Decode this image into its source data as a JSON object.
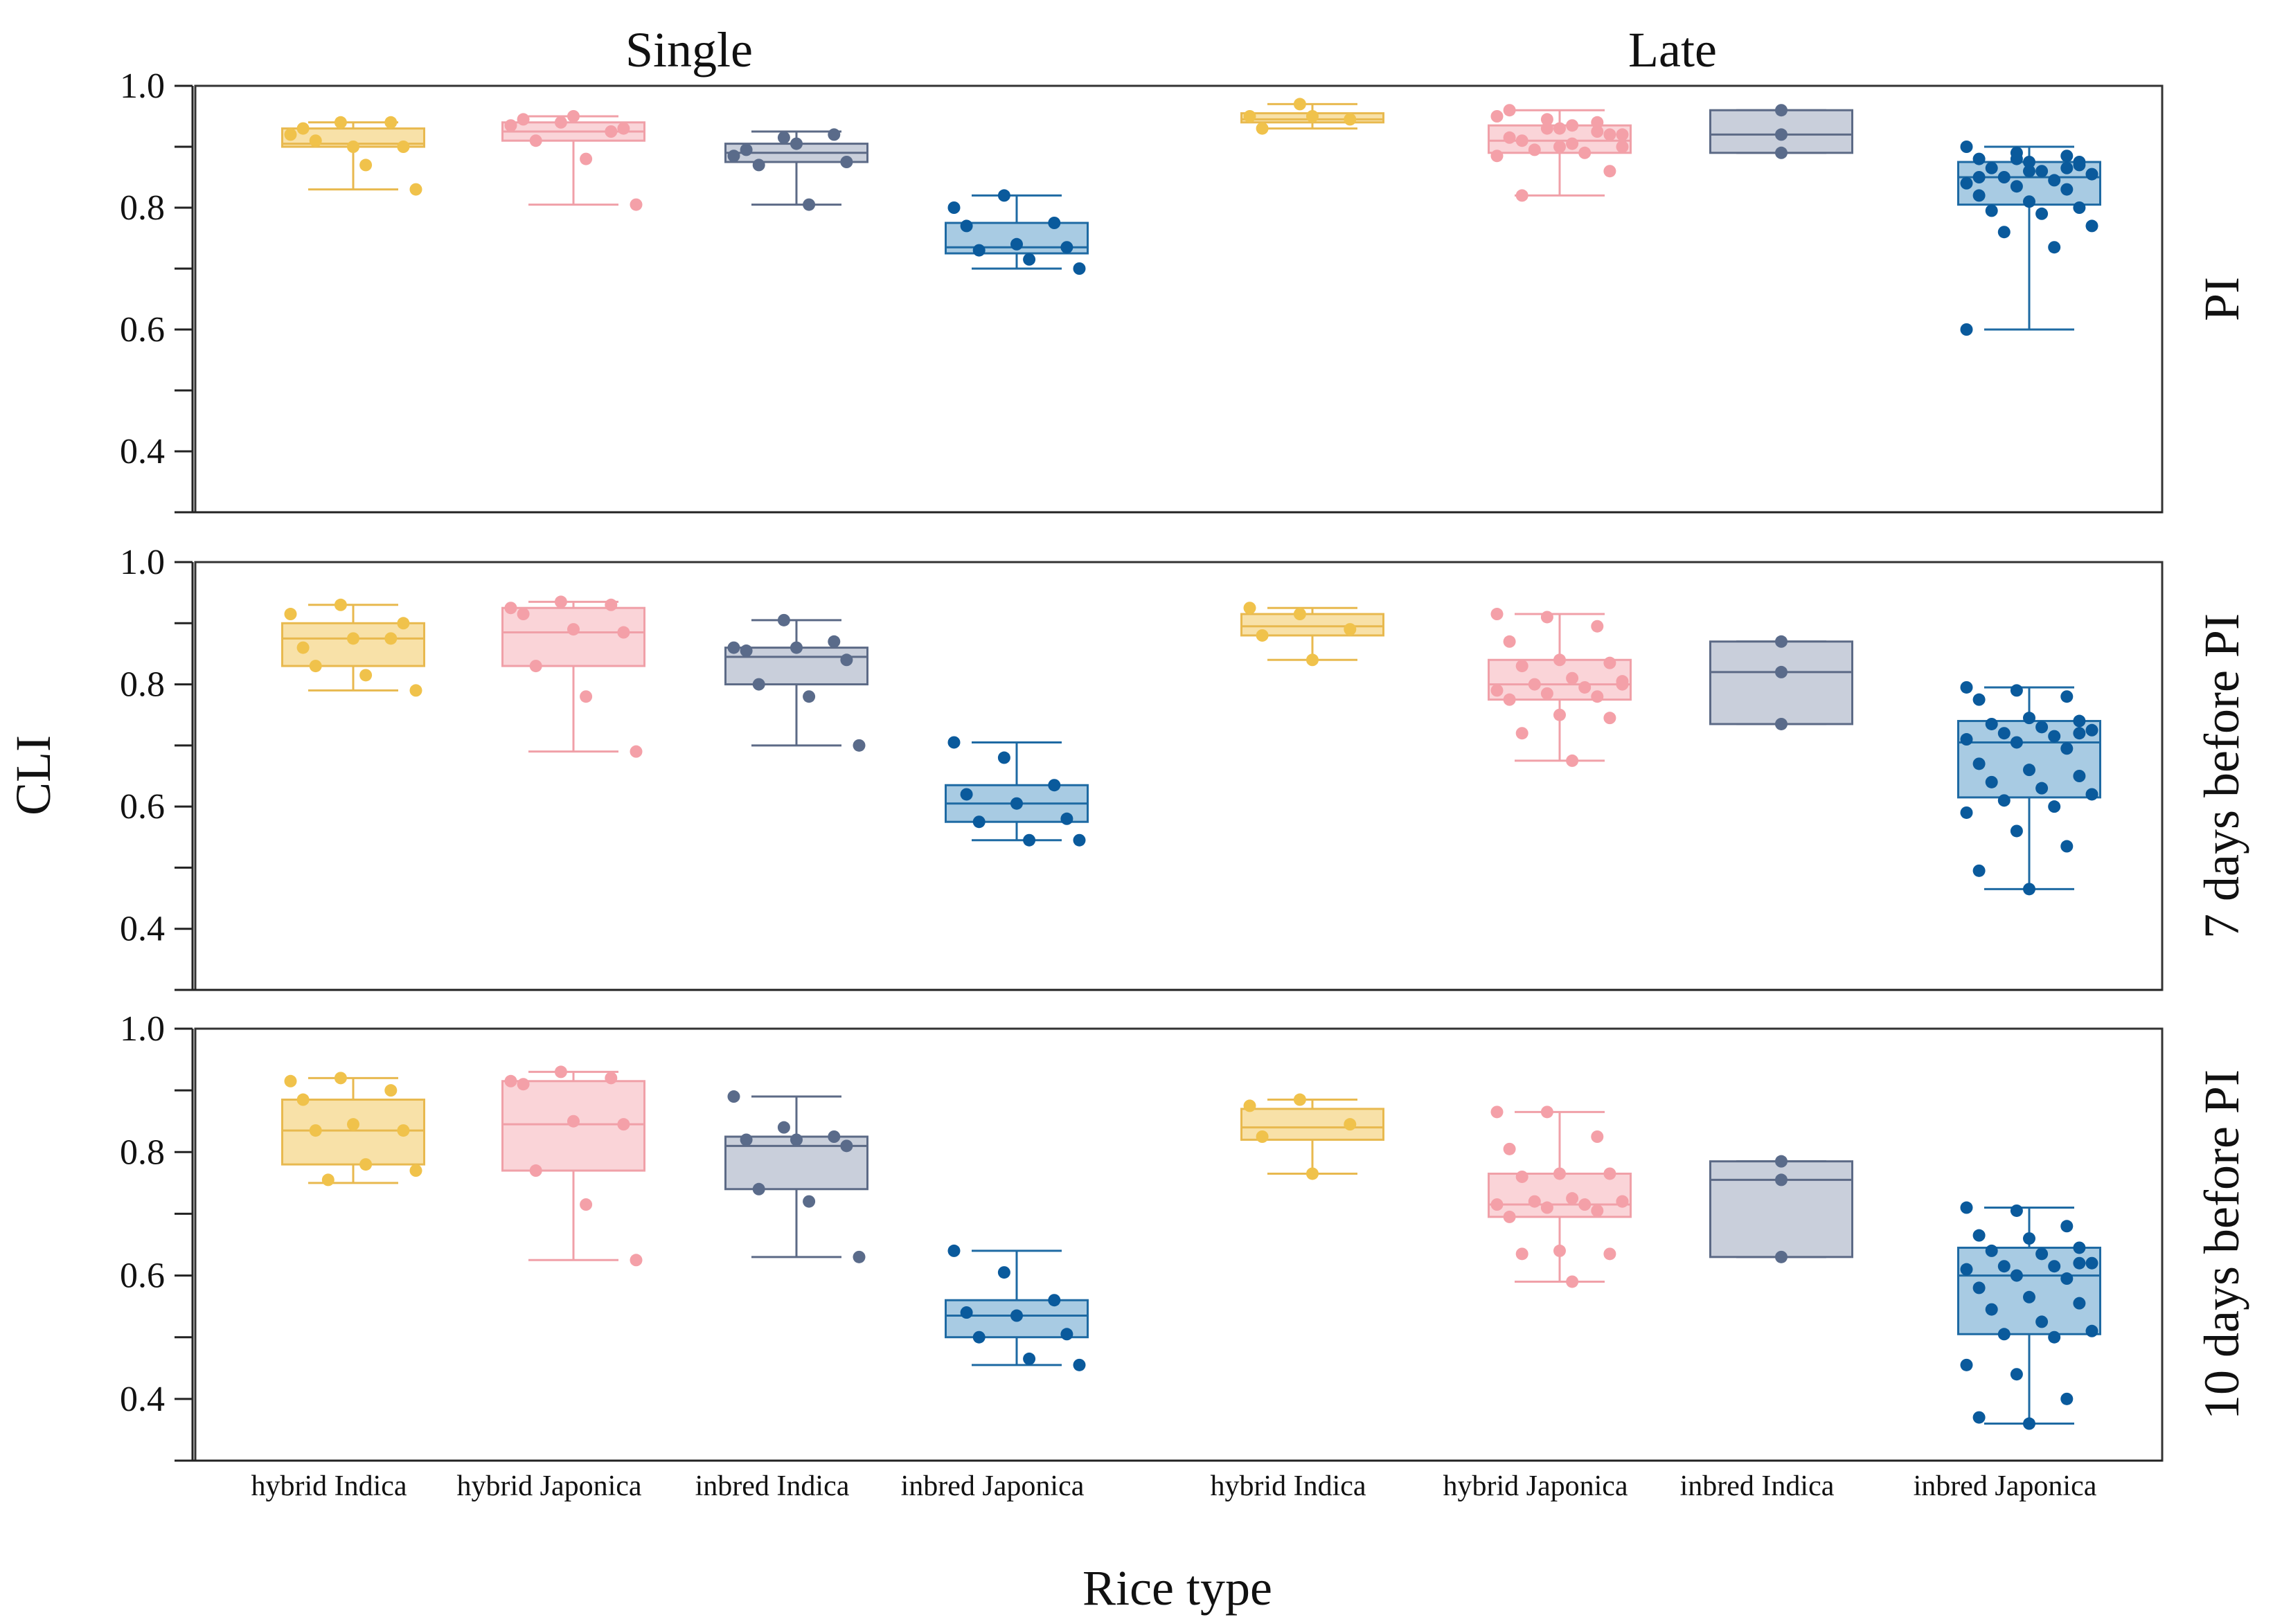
{
  "chart_data": {
    "type": "box",
    "xlabel": "Rice type",
    "ylabel": "CLI",
    "ylim": [
      0.3,
      1.0
    ],
    "yticks": [
      "0.4",
      "0.6",
      "0.8",
      "1.0"
    ],
    "columns": [
      "Single",
      "Late"
    ],
    "rows": [
      "PI",
      "7 days before PI",
      "10 days before PI"
    ],
    "categories": [
      "hybrid Indica",
      "hybrid Japonica",
      "inbred Indica",
      "inbred Japonica"
    ],
    "colors": {
      "hybrid Indica": {
        "fill": "#f8e1a8",
        "stroke": "#e8b94f",
        "point": "#f0c24b"
      },
      "hybrid Japonica": {
        "fill": "#fad4d8",
        "stroke": "#f0a0a8",
        "point": "#f4a0a8"
      },
      "inbred Indica": {
        "fill": "#c9cfdb",
        "stroke": "#5c6a86",
        "point": "#5a6b8a"
      },
      "inbred Japonica": {
        "fill": "#a8cbe3",
        "stroke": "#1e6aa3",
        "point": "#0a5a9c"
      }
    },
    "panels": [
      {
        "row": "PI",
        "column": "Single",
        "groups": [
          {
            "category": "hybrid Indica",
            "min": 0.83,
            "q1": 0.9,
            "median": 0.905,
            "q3": 0.93,
            "max": 0.94,
            "points": [
              0.92,
              0.94,
              0.94,
              0.93,
              0.9,
              0.9,
              0.91,
              0.87,
              0.83
            ]
          },
          {
            "category": "hybrid Japonica",
            "min": 0.805,
            "q1": 0.91,
            "median": 0.925,
            "q3": 0.94,
            "max": 0.95,
            "points": [
              0.935,
              0.94,
              0.925,
              0.945,
              0.95,
              0.93,
              0.91,
              0.88,
              0.805
            ]
          },
          {
            "category": "inbred Indica",
            "min": 0.805,
            "q1": 0.875,
            "median": 0.89,
            "q3": 0.905,
            "max": 0.925,
            "points": [
              0.885,
              0.915,
              0.92,
              0.895,
              0.905,
              0.875,
              0.87,
              0.805
            ]
          },
          {
            "category": "inbred Japonica",
            "min": 0.7,
            "q1": 0.725,
            "median": 0.735,
            "q3": 0.775,
            "max": 0.82,
            "points": [
              0.8,
              0.82,
              0.775,
              0.77,
              0.74,
              0.735,
              0.73,
              0.715,
              0.7
            ]
          }
        ]
      },
      {
        "row": "PI",
        "column": "Late",
        "groups": [
          {
            "category": "hybrid Indica",
            "min": 0.93,
            "q1": 0.94,
            "median": 0.945,
            "q3": 0.955,
            "max": 0.97,
            "points": [
              0.95,
              0.97,
              0.945,
              0.93,
              0.95
            ]
          },
          {
            "category": "hybrid Japonica",
            "min": 0.82,
            "q1": 0.89,
            "median": 0.91,
            "q3": 0.935,
            "max": 0.96,
            "points": [
              0.95,
              0.945,
              0.94,
              0.96,
              0.93,
              0.92,
              0.91,
              0.905,
              0.9,
              0.895,
              0.89,
              0.885,
              0.93,
              0.925,
              0.915,
              0.9,
              0.86,
              0.82,
              0.935,
              0.92
            ]
          },
          {
            "category": "inbred Indica",
            "min": 0.89,
            "q1": 0.89,
            "median": 0.92,
            "q3": 0.96,
            "max": 0.96,
            "points": [
              0.96,
              0.92,
              0.89
            ]
          },
          {
            "category": "inbred Japonica",
            "min": 0.6,
            "q1": 0.805,
            "median": 0.85,
            "q3": 0.875,
            "max": 0.9,
            "points": [
              0.9,
              0.89,
              0.885,
              0.88,
              0.875,
              0.87,
              0.865,
              0.86,
              0.855,
              0.85,
              0.845,
              0.84,
              0.835,
              0.83,
              0.82,
              0.81,
              0.8,
              0.795,
              0.79,
              0.77,
              0.76,
              0.735,
              0.6,
              0.88,
              0.865,
              0.85,
              0.86,
              0.875
            ]
          }
        ]
      },
      {
        "row": "7 days before PI",
        "column": "Single",
        "groups": [
          {
            "category": "hybrid Indica",
            "min": 0.79,
            "q1": 0.83,
            "median": 0.875,
            "q3": 0.9,
            "max": 0.93,
            "points": [
              0.915,
              0.93,
              0.875,
              0.86,
              0.875,
              0.9,
              0.83,
              0.815,
              0.79
            ]
          },
          {
            "category": "hybrid Japonica",
            "min": 0.69,
            "q1": 0.83,
            "median": 0.885,
            "q3": 0.925,
            "max": 0.935,
            "points": [
              0.925,
              0.935,
              0.93,
              0.915,
              0.89,
              0.885,
              0.83,
              0.78,
              0.69
            ]
          },
          {
            "category": "inbred Indica",
            "min": 0.7,
            "q1": 0.8,
            "median": 0.845,
            "q3": 0.86,
            "max": 0.905,
            "points": [
              0.86,
              0.905,
              0.87,
              0.855,
              0.86,
              0.84,
              0.8,
              0.78,
              0.7
            ]
          },
          {
            "category": "inbred Japonica",
            "min": 0.545,
            "q1": 0.575,
            "median": 0.605,
            "q3": 0.635,
            "max": 0.705,
            "points": [
              0.705,
              0.68,
              0.635,
              0.62,
              0.605,
              0.58,
              0.575,
              0.545,
              0.545
            ]
          }
        ]
      },
      {
        "row": "7 days before PI",
        "column": "Late",
        "groups": [
          {
            "category": "hybrid Indica",
            "min": 0.84,
            "q1": 0.88,
            "median": 0.895,
            "q3": 0.915,
            "max": 0.925,
            "points": [
              0.925,
              0.915,
              0.89,
              0.88,
              0.84
            ]
          },
          {
            "category": "hybrid Japonica",
            "min": 0.675,
            "q1": 0.775,
            "median": 0.8,
            "q3": 0.84,
            "max": 0.915,
            "points": [
              0.915,
              0.91,
              0.895,
              0.87,
              0.84,
              0.835,
              0.83,
              0.81,
              0.8,
              0.8,
              0.795,
              0.79,
              0.785,
              0.78,
              0.775,
              0.75,
              0.745,
              0.72,
              0.675,
              0.805
            ]
          },
          {
            "category": "inbred Indica",
            "min": 0.735,
            "q1": 0.735,
            "median": 0.82,
            "q3": 0.87,
            "max": 0.87,
            "points": [
              0.87,
              0.82,
              0.735
            ]
          },
          {
            "category": "inbred Japonica",
            "min": 0.465,
            "q1": 0.615,
            "median": 0.705,
            "q3": 0.74,
            "max": 0.795,
            "points": [
              0.795,
              0.79,
              0.78,
              0.775,
              0.745,
              0.74,
              0.735,
              0.73,
              0.725,
              0.72,
              0.715,
              0.71,
              0.705,
              0.695,
              0.67,
              0.66,
              0.65,
              0.64,
              0.63,
              0.62,
              0.61,
              0.6,
              0.59,
              0.56,
              0.535,
              0.495,
              0.465,
              0.72
            ]
          }
        ]
      },
      {
        "row": "10 days before PI",
        "column": "Single",
        "groups": [
          {
            "category": "hybrid Indica",
            "min": 0.75,
            "q1": 0.78,
            "median": 0.835,
            "q3": 0.885,
            "max": 0.92,
            "points": [
              0.915,
              0.92,
              0.9,
              0.885,
              0.845,
              0.835,
              0.835,
              0.78,
              0.77,
              0.755
            ]
          },
          {
            "category": "hybrid Japonica",
            "min": 0.625,
            "q1": 0.77,
            "median": 0.845,
            "q3": 0.915,
            "max": 0.93,
            "points": [
              0.915,
              0.93,
              0.92,
              0.91,
              0.85,
              0.845,
              0.77,
              0.715,
              0.625
            ]
          },
          {
            "category": "inbred Indica",
            "min": 0.63,
            "q1": 0.74,
            "median": 0.81,
            "q3": 0.825,
            "max": 0.89,
            "points": [
              0.89,
              0.84,
              0.825,
              0.82,
              0.82,
              0.81,
              0.74,
              0.72,
              0.63
            ]
          },
          {
            "category": "inbred Japonica",
            "min": 0.455,
            "q1": 0.5,
            "median": 0.535,
            "q3": 0.56,
            "max": 0.64,
            "points": [
              0.64,
              0.605,
              0.56,
              0.54,
              0.535,
              0.505,
              0.5,
              0.465,
              0.455
            ]
          }
        ]
      },
      {
        "row": "10 days before PI",
        "column": "Late",
        "groups": [
          {
            "category": "hybrid Indica",
            "min": 0.765,
            "q1": 0.82,
            "median": 0.84,
            "q3": 0.87,
            "max": 0.885,
            "points": [
              0.875,
              0.885,
              0.845,
              0.825,
              0.765
            ]
          },
          {
            "category": "hybrid Japonica",
            "min": 0.59,
            "q1": 0.695,
            "median": 0.715,
            "q3": 0.765,
            "max": 0.865,
            "points": [
              0.865,
              0.865,
              0.825,
              0.805,
              0.765,
              0.765,
              0.76,
              0.725,
              0.72,
              0.72,
              0.715,
              0.715,
              0.71,
              0.705,
              0.695,
              0.64,
              0.635,
              0.635,
              0.59,
              0.72
            ]
          },
          {
            "category": "inbred Indica",
            "min": 0.63,
            "q1": 0.63,
            "median": 0.755,
            "q3": 0.785,
            "max": 0.785,
            "points": [
              0.785,
              0.755,
              0.63
            ]
          },
          {
            "category": "inbred Japonica",
            "min": 0.36,
            "q1": 0.505,
            "median": 0.6,
            "q3": 0.645,
            "max": 0.71,
            "points": [
              0.71,
              0.705,
              0.68,
              0.665,
              0.66,
              0.645,
              0.64,
              0.635,
              0.62,
              0.615,
              0.615,
              0.61,
              0.6,
              0.595,
              0.58,
              0.565,
              0.555,
              0.545,
              0.525,
              0.51,
              0.505,
              0.5,
              0.455,
              0.44,
              0.4,
              0.37,
              0.36,
              0.62
            ]
          }
        ]
      }
    ]
  }
}
